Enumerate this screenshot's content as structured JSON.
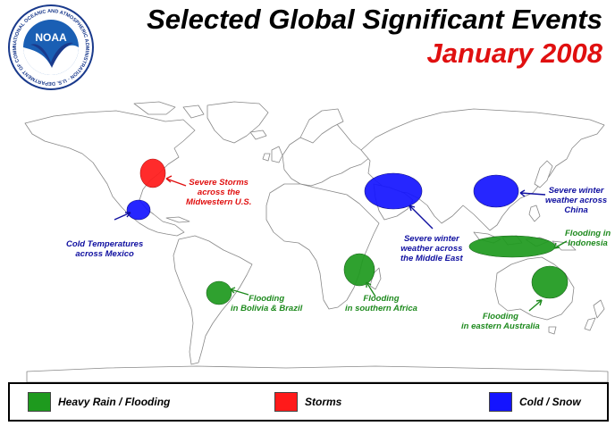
{
  "header": {
    "title": "Selected Global Significant Events",
    "subtitle": "January 2008",
    "logo_center_text": "NOAA",
    "logo_ring_text": "NATIONAL OCEANIC AND ATMOSPHERIC ADMINISTRATION · U.S. DEPARTMENT OF COMMERCE"
  },
  "colors": {
    "flooding": "#1e9a1e",
    "storms": "#ff1a1a",
    "cold": "#1414ff",
    "title_red": "#e01010"
  },
  "events": [
    {
      "category": "storms",
      "label": "Severe Storms\nacross the\nMidwestern U.S."
    },
    {
      "category": "cold",
      "label": "Cold Temperatures\nacross Mexico"
    },
    {
      "category": "cold",
      "label": "Severe winter\nweather across\nthe Middle East"
    },
    {
      "category": "cold",
      "label": "Severe winter\nweather across\nChina"
    },
    {
      "category": "flooding",
      "label": "Flooding in\nIndonesia"
    },
    {
      "category": "flooding",
      "label": "Flooding\nin Bolivia & Brazil"
    },
    {
      "category": "flooding",
      "label": "Flooding\nin southern Africa"
    },
    {
      "category": "flooding",
      "label": "Flooding\nin eastern Australia"
    }
  ],
  "legend": {
    "items": [
      {
        "label": "Heavy Rain / Flooding",
        "color": "#1e9a1e"
      },
      {
        "label": "Storms",
        "color": "#ff1a1a"
      },
      {
        "label": "Cold / Snow",
        "color": "#1414ff"
      }
    ]
  }
}
